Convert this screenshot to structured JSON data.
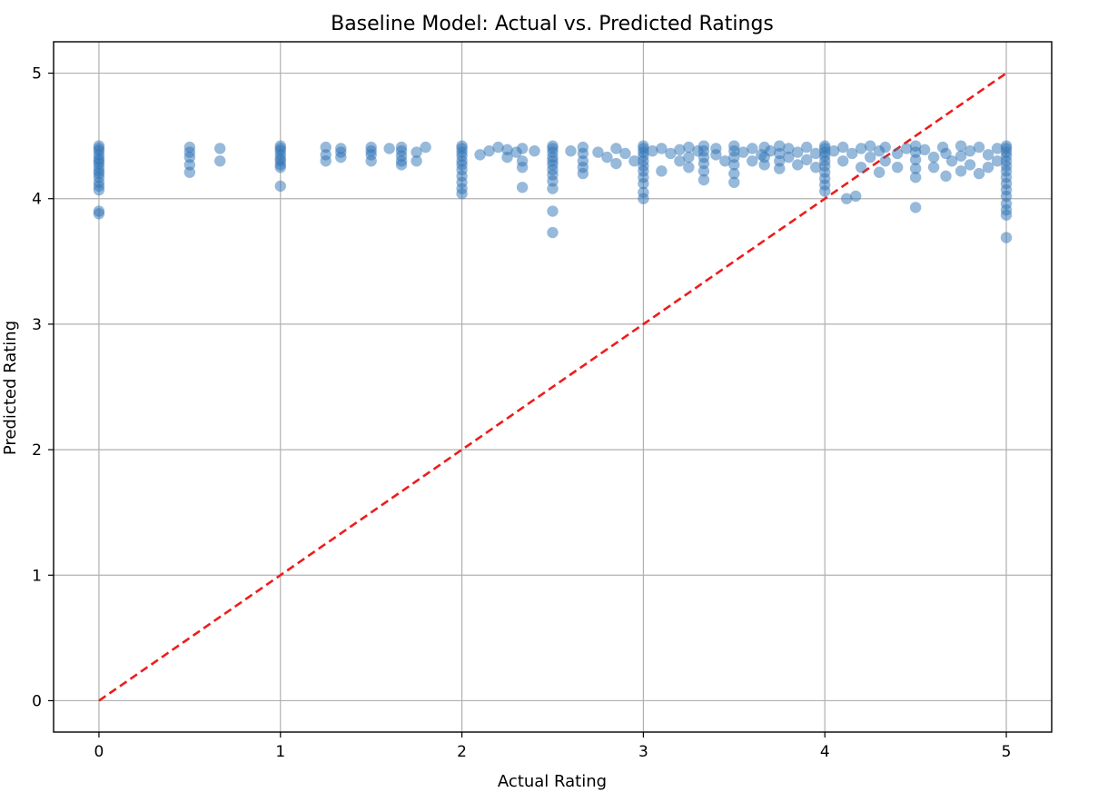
{
  "chart_data": {
    "type": "scatter",
    "title": "Baseline Model: Actual vs. Predicted Ratings",
    "xlabel": "Actual Rating",
    "ylabel": "Predicted Rating",
    "xlim": [
      -0.25,
      5.25
    ],
    "ylim": [
      -0.25,
      5.25
    ],
    "xticks": [
      0,
      1,
      2,
      3,
      4,
      5
    ],
    "yticks": [
      0,
      1,
      2,
      3,
      4,
      5
    ],
    "grid": true,
    "reference_line": {
      "style": "dashed",
      "color": "#ee1c1c",
      "from": [
        0,
        0
      ],
      "to": [
        5,
        5
      ]
    },
    "marker_color": "#2f74b5",
    "points": [
      [
        0,
        4.42
      ],
      [
        0,
        4.4
      ],
      [
        0,
        4.38
      ],
      [
        0,
        4.35
      ],
      [
        0,
        4.32
      ],
      [
        0,
        4.3
      ],
      [
        0,
        4.28
      ],
      [
        0,
        4.25
      ],
      [
        0,
        4.22
      ],
      [
        0,
        4.2
      ],
      [
        0,
        4.17
      ],
      [
        0,
        4.13
      ],
      [
        0,
        4.1
      ],
      [
        0,
        4.07
      ],
      [
        0,
        3.9
      ],
      [
        0,
        3.88
      ],
      [
        0.5,
        4.41
      ],
      [
        0.5,
        4.37
      ],
      [
        0.5,
        4.33
      ],
      [
        0.5,
        4.27
      ],
      [
        0.5,
        4.21
      ],
      [
        0.667,
        4.4
      ],
      [
        0.667,
        4.3
      ],
      [
        1,
        4.42
      ],
      [
        1,
        4.4
      ],
      [
        1,
        4.38
      ],
      [
        1,
        4.35
      ],
      [
        1,
        4.32
      ],
      [
        1,
        4.3
      ],
      [
        1,
        4.27
      ],
      [
        1,
        4.25
      ],
      [
        1,
        4.1
      ],
      [
        1.25,
        4.41
      ],
      [
        1.25,
        4.35
      ],
      [
        1.25,
        4.3
      ],
      [
        1.333,
        4.4
      ],
      [
        1.333,
        4.37
      ],
      [
        1.333,
        4.33
      ],
      [
        1.5,
        4.41
      ],
      [
        1.5,
        4.38
      ],
      [
        1.5,
        4.35
      ],
      [
        1.5,
        4.3
      ],
      [
        1.6,
        4.4
      ],
      [
        1.667,
        4.41
      ],
      [
        1.667,
        4.38
      ],
      [
        1.667,
        4.34
      ],
      [
        1.667,
        4.3
      ],
      [
        1.667,
        4.27
      ],
      [
        1.75,
        4.37
      ],
      [
        1.75,
        4.3
      ],
      [
        1.8,
        4.41
      ],
      [
        2,
        4.42
      ],
      [
        2,
        4.4
      ],
      [
        2,
        4.37
      ],
      [
        2,
        4.34
      ],
      [
        2,
        4.3
      ],
      [
        2,
        4.27
      ],
      [
        2,
        4.23
      ],
      [
        2,
        4.18
      ],
      [
        2,
        4.13
      ],
      [
        2,
        4.08
      ],
      [
        2,
        4.04
      ],
      [
        2.1,
        4.35
      ],
      [
        2.15,
        4.38
      ],
      [
        2.2,
        4.41
      ],
      [
        2.25,
        4.33
      ],
      [
        2.25,
        4.39
      ],
      [
        2.3,
        4.37
      ],
      [
        2.333,
        4.4
      ],
      [
        2.333,
        4.3
      ],
      [
        2.333,
        4.25
      ],
      [
        2.333,
        4.09
      ],
      [
        2.4,
        4.38
      ],
      [
        2.5,
        4.42
      ],
      [
        2.5,
        4.4
      ],
      [
        2.5,
        4.37
      ],
      [
        2.5,
        4.33
      ],
      [
        2.5,
        4.3
      ],
      [
        2.5,
        4.27
      ],
      [
        2.5,
        4.23
      ],
      [
        2.5,
        4.19
      ],
      [
        2.5,
        4.14
      ],
      [
        2.5,
        4.08
      ],
      [
        2.5,
        3.9
      ],
      [
        2.5,
        3.73
      ],
      [
        2.6,
        4.38
      ],
      [
        2.667,
        4.41
      ],
      [
        2.667,
        4.36
      ],
      [
        2.667,
        4.3
      ],
      [
        2.667,
        4.25
      ],
      [
        2.667,
        4.2
      ],
      [
        2.75,
        4.37
      ],
      [
        2.8,
        4.33
      ],
      [
        2.85,
        4.4
      ],
      [
        2.85,
        4.28
      ],
      [
        2.9,
        4.36
      ],
      [
        2.95,
        4.3
      ],
      [
        3,
        4.42
      ],
      [
        3,
        4.4
      ],
      [
        3,
        4.37
      ],
      [
        3,
        4.34
      ],
      [
        3,
        4.3
      ],
      [
        3,
        4.26
      ],
      [
        3,
        4.22
      ],
      [
        3,
        4.17
      ],
      [
        3,
        4.12
      ],
      [
        3,
        4.05
      ],
      [
        3,
        4.0
      ],
      [
        3.05,
        4.38
      ],
      [
        3.1,
        4.4
      ],
      [
        3.1,
        4.22
      ],
      [
        3.15,
        4.36
      ],
      [
        3.2,
        4.39
      ],
      [
        3.2,
        4.3
      ],
      [
        3.25,
        4.41
      ],
      [
        3.25,
        4.33
      ],
      [
        3.25,
        4.25
      ],
      [
        3.3,
        4.38
      ],
      [
        3.333,
        4.42
      ],
      [
        3.333,
        4.38
      ],
      [
        3.333,
        4.33
      ],
      [
        3.333,
        4.28
      ],
      [
        3.333,
        4.22
      ],
      [
        3.333,
        4.15
      ],
      [
        3.4,
        4.4
      ],
      [
        3.4,
        4.35
      ],
      [
        3.45,
        4.3
      ],
      [
        3.5,
        4.42
      ],
      [
        3.5,
        4.38
      ],
      [
        3.5,
        4.33
      ],
      [
        3.5,
        4.27
      ],
      [
        3.5,
        4.2
      ],
      [
        3.5,
        4.13
      ],
      [
        3.55,
        4.37
      ],
      [
        3.6,
        4.4
      ],
      [
        3.6,
        4.3
      ],
      [
        3.65,
        4.35
      ],
      [
        3.667,
        4.41
      ],
      [
        3.667,
        4.33
      ],
      [
        3.667,
        4.27
      ],
      [
        3.7,
        4.38
      ],
      [
        3.75,
        4.42
      ],
      [
        3.75,
        4.36
      ],
      [
        3.75,
        4.3
      ],
      [
        3.75,
        4.24
      ],
      [
        3.8,
        4.4
      ],
      [
        3.8,
        4.33
      ],
      [
        3.85,
        4.37
      ],
      [
        3.85,
        4.27
      ],
      [
        3.9,
        4.41
      ],
      [
        3.9,
        4.31
      ],
      [
        3.95,
        4.36
      ],
      [
        3.95,
        4.25
      ],
      [
        4,
        4.42
      ],
      [
        4,
        4.4
      ],
      [
        4,
        4.37
      ],
      [
        4,
        4.34
      ],
      [
        4,
        4.3
      ],
      [
        4,
        4.26
      ],
      [
        4,
        4.21
      ],
      [
        4,
        4.16
      ],
      [
        4,
        4.11
      ],
      [
        4,
        4.06
      ],
      [
        4.05,
        4.38
      ],
      [
        4.1,
        4.41
      ],
      [
        4.1,
        4.3
      ],
      [
        4.12,
        4.0
      ],
      [
        4.15,
        4.36
      ],
      [
        4.17,
        4.02
      ],
      [
        4.2,
        4.4
      ],
      [
        4.2,
        4.25
      ],
      [
        4.25,
        4.42
      ],
      [
        4.25,
        4.33
      ],
      [
        4.3,
        4.38
      ],
      [
        4.3,
        4.21
      ],
      [
        4.333,
        4.41
      ],
      [
        4.333,
        4.3
      ],
      [
        4.4,
        4.36
      ],
      [
        4.4,
        4.25
      ],
      [
        4.45,
        4.4
      ],
      [
        4.5,
        4.42
      ],
      [
        4.5,
        4.37
      ],
      [
        4.5,
        4.31
      ],
      [
        4.5,
        4.24
      ],
      [
        4.5,
        4.17
      ],
      [
        4.5,
        3.93
      ],
      [
        4.55,
        4.39
      ],
      [
        4.6,
        4.33
      ],
      [
        4.6,
        4.25
      ],
      [
        4.65,
        4.41
      ],
      [
        4.667,
        4.36
      ],
      [
        4.667,
        4.18
      ],
      [
        4.7,
        4.3
      ],
      [
        4.75,
        4.42
      ],
      [
        4.75,
        4.34
      ],
      [
        4.75,
        4.22
      ],
      [
        4.8,
        4.38
      ],
      [
        4.8,
        4.27
      ],
      [
        4.85,
        4.41
      ],
      [
        4.85,
        4.2
      ],
      [
        4.9,
        4.35
      ],
      [
        4.9,
        4.25
      ],
      [
        4.95,
        4.4
      ],
      [
        4.95,
        4.3
      ],
      [
        5,
        4.42
      ],
      [
        5,
        4.4
      ],
      [
        5,
        4.37
      ],
      [
        5,
        4.34
      ],
      [
        5,
        4.3
      ],
      [
        5,
        4.26
      ],
      [
        5,
        4.22
      ],
      [
        5,
        4.17
      ],
      [
        5,
        4.12
      ],
      [
        5,
        4.07
      ],
      [
        5,
        4.02
      ],
      [
        5,
        3.96
      ],
      [
        5,
        3.91
      ],
      [
        5,
        3.87
      ],
      [
        5,
        3.69
      ]
    ]
  }
}
